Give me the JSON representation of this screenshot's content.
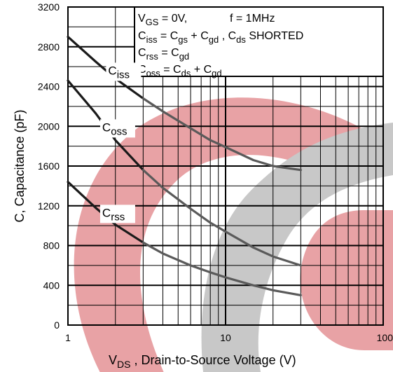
{
  "chart_data": {
    "type": "line",
    "x_scale": "log",
    "xlim": [
      1,
      100
    ],
    "ylim": [
      0,
      3200
    ],
    "x_ticks": [
      1,
      10,
      100
    ],
    "x_tick_labels": [
      "1",
      "10",
      "100"
    ],
    "y_ticks": [
      0,
      400,
      800,
      1200,
      1600,
      2000,
      2400,
      2800,
      3200
    ],
    "y_tick_labels": [
      "0",
      "400",
      "800",
      "1200",
      "1600",
      "2000",
      "2400",
      "2800",
      "3200"
    ],
    "grid": true,
    "xlabel": {
      "main": "V",
      "sub": "DS",
      "rest": " , Drain-to-Source Voltage (V)"
    },
    "ylabel": "C, Capacitance (pF)",
    "legend_box": {
      "line1": {
        "a": "V",
        "a_sub": "GS",
        "b": " = 0V,",
        "c": "f = 1MHz"
      },
      "line2": {
        "a": "C",
        "a_sub": "iss",
        "b": " = C",
        "b_sub": "gs",
        "c": " + C",
        "c_sub": "gd",
        "d": " ,  C",
        "d_sub": "ds",
        "e": "  SHORTED"
      },
      "line3": {
        "a": "C",
        "a_sub": "rss",
        "b": " = C",
        "b_sub": "gd"
      },
      "line4": {
        "a": "C",
        "a_sub": "oss",
        "b": " = C",
        "b_sub": "ds",
        "c": " + C",
        "c_sub": "gd"
      }
    },
    "series": [
      {
        "name": "Ciss",
        "label_main": "C",
        "label_sub": "iss",
        "label_at": [
          1.8,
          2520
        ],
        "x": [
          1,
          1.5,
          2,
          3,
          4,
          6,
          8,
          10,
          15,
          20,
          30
        ],
        "y": [
          2900,
          2650,
          2480,
          2280,
          2150,
          1980,
          1860,
          1790,
          1660,
          1600,
          1560
        ]
      },
      {
        "name": "Coss",
        "label_main": "C",
        "label_sub": "oss",
        "label_at": [
          1.65,
          1950
        ],
        "x": [
          1,
          1.5,
          2,
          3,
          4,
          6,
          8,
          10,
          15,
          20,
          30
        ],
        "y": [
          2460,
          2130,
          1860,
          1560,
          1380,
          1170,
          1030,
          940,
          780,
          690,
          600
        ]
      },
      {
        "name": "Crss",
        "label_main": "C",
        "label_sub": "rss",
        "label_at": [
          1.65,
          1090
        ],
        "x": [
          1,
          1.5,
          2,
          3,
          4,
          6,
          8,
          10,
          15,
          20,
          30
        ],
        "y": [
          1440,
          1180,
          1010,
          830,
          720,
          600,
          530,
          480,
          400,
          350,
          300
        ]
      }
    ],
    "colors": {
      "line_dark": "#1a1a1a",
      "line_gray": "#5a5a5a",
      "grid": "#000000",
      "watermark_red": "#e8a2a5",
      "watermark_gray": "#c8c8c8"
    }
  }
}
